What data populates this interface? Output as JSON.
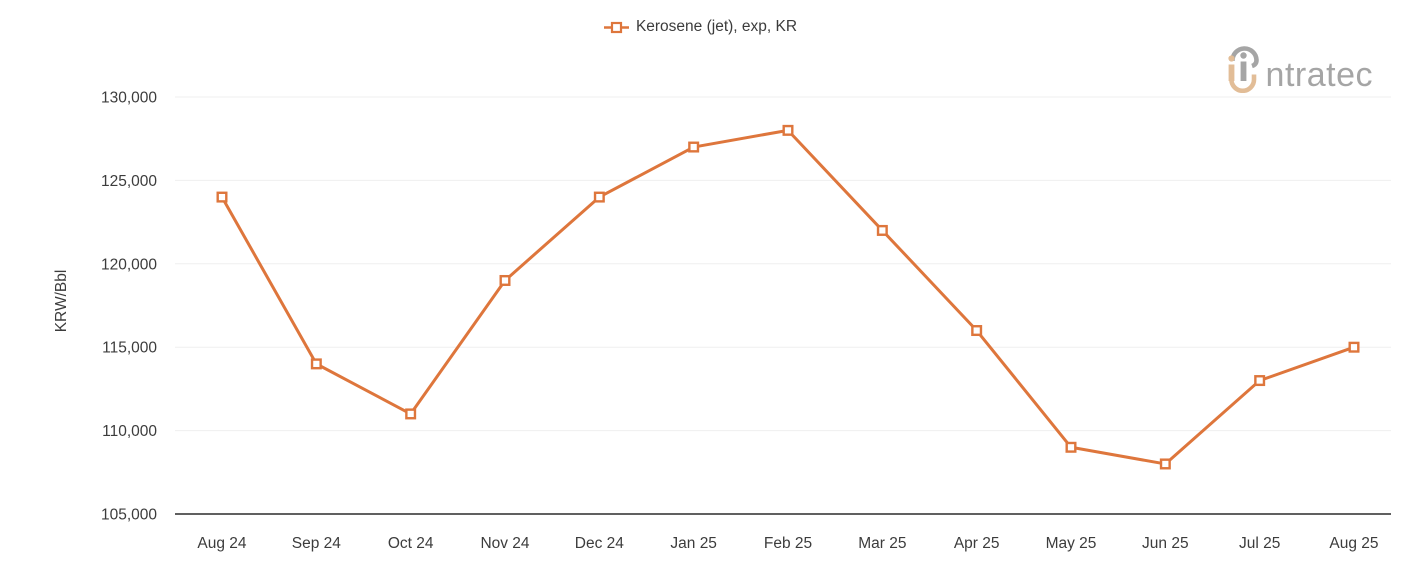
{
  "legend": {
    "label": "Kerosene (jet), exp, KR"
  },
  "logo": {
    "wordmark": "intratec",
    "text_after_mark": "ntratec"
  },
  "colors": {
    "series_orange": "#DE763C",
    "grid_line": "#efefef",
    "axis_line": "#606060",
    "text_dark": "#3c3c3c",
    "logo_gray": "#a5a5a5",
    "logo_tan": "#e2bd97",
    "marker_fill": "#ffffff"
  },
  "chart_data": {
    "type": "line",
    "title": "",
    "xlabel": "",
    "ylabel": "KRW/Bbl",
    "categories": [
      "Aug 24",
      "Sep 24",
      "Oct 24",
      "Nov 24",
      "Dec 24",
      "Jan 25",
      "Feb 25",
      "Mar 25",
      "Apr 25",
      "May 25",
      "Jun 25",
      "Jul 25",
      "Aug 25"
    ],
    "series": [
      {
        "name": "Kerosene (jet), exp, KR",
        "color": "#DE763C",
        "marker": "open-square",
        "values": [
          124000,
          114000,
          111000,
          119000,
          124000,
          127000,
          128000,
          122000,
          116000,
          109000,
          108000,
          113000,
          115000
        ]
      }
    ],
    "ylim": [
      105000,
      130000
    ],
    "ytick_interval": 5000,
    "ytick_labels": [
      "130,000",
      "125,000",
      "120,000",
      "115,000",
      "110,000",
      "105,000"
    ],
    "grid": "horizontal",
    "legend_position": "top-center"
  }
}
